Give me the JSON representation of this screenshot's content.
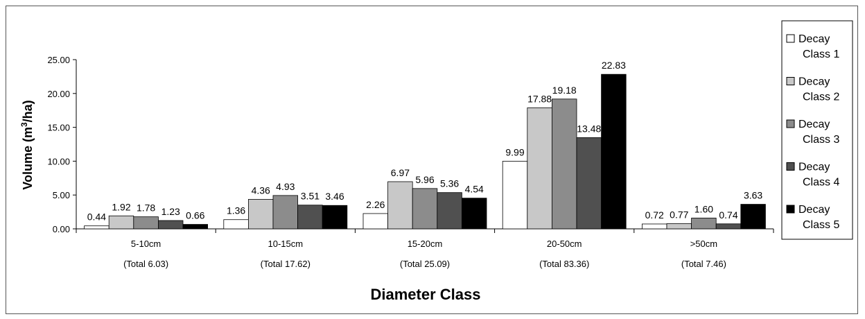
{
  "chart_data": {
    "type": "bar",
    "categories": [
      "5-10cm",
      "10-15cm",
      "15-20cm",
      "20-50cm",
      ">50cm"
    ],
    "category_totals": [
      "(Total 6.03)",
      "(Total 17.62)",
      "(Total 25.09)",
      "(Total 83.36)",
      "(Total 7.46)"
    ],
    "series": [
      {
        "name": "Decay Class 1",
        "name_lines": [
          "Decay",
          "Class 1"
        ],
        "color": "#ffffff",
        "values": [
          0.44,
          1.36,
          2.26,
          9.99,
          0.72
        ],
        "labels": [
          "0.44",
          "1.36",
          "2.26",
          "9.99",
          "0.72"
        ]
      },
      {
        "name": "Decay Class 2",
        "name_lines": [
          "Decay",
          "Class 2"
        ],
        "color": "#c8c8c8",
        "values": [
          1.92,
          4.36,
          6.97,
          17.88,
          0.77
        ],
        "labels": [
          "1.92",
          "4.36",
          "6.97",
          "17.88",
          "0.77"
        ]
      },
      {
        "name": "Decay Class 3",
        "name_lines": [
          "Decay",
          "Class 3"
        ],
        "color": "#8c8c8c",
        "values": [
          1.78,
          4.93,
          5.96,
          19.18,
          1.6
        ],
        "labels": [
          "1.78",
          "4.93",
          "5.96",
          "19.18",
          "1.60"
        ]
      },
      {
        "name": "Decay Class 4",
        "name_lines": [
          "Decay",
          "Class 4"
        ],
        "color": "#505050",
        "values": [
          1.23,
          3.51,
          5.36,
          13.48,
          0.74
        ],
        "labels": [
          "1.23",
          "3.51",
          "5.36",
          "13.48",
          "0.74"
        ]
      },
      {
        "name": "Decay Class 5",
        "name_lines": [
          "Decay",
          "Class 5"
        ],
        "color": "#000000",
        "values": [
          0.66,
          3.46,
          4.54,
          22.83,
          3.63
        ],
        "labels": [
          "0.66",
          "3.46",
          "4.54",
          "22.83",
          "3.63"
        ]
      }
    ],
    "xlabel": "Diameter Class",
    "ylabel_prefix": "Volume (m",
    "ylabel_sup": "3",
    "ylabel_suffix": "/ha)",
    "ylim": [
      0,
      25
    ],
    "yticks": [
      0,
      5,
      10,
      15,
      20,
      25
    ],
    "ytick_labels": [
      "0.00",
      "5.00",
      "10.00",
      "15.00",
      "20.00",
      "25.00"
    ],
    "grid": false,
    "legend_position": "right"
  }
}
